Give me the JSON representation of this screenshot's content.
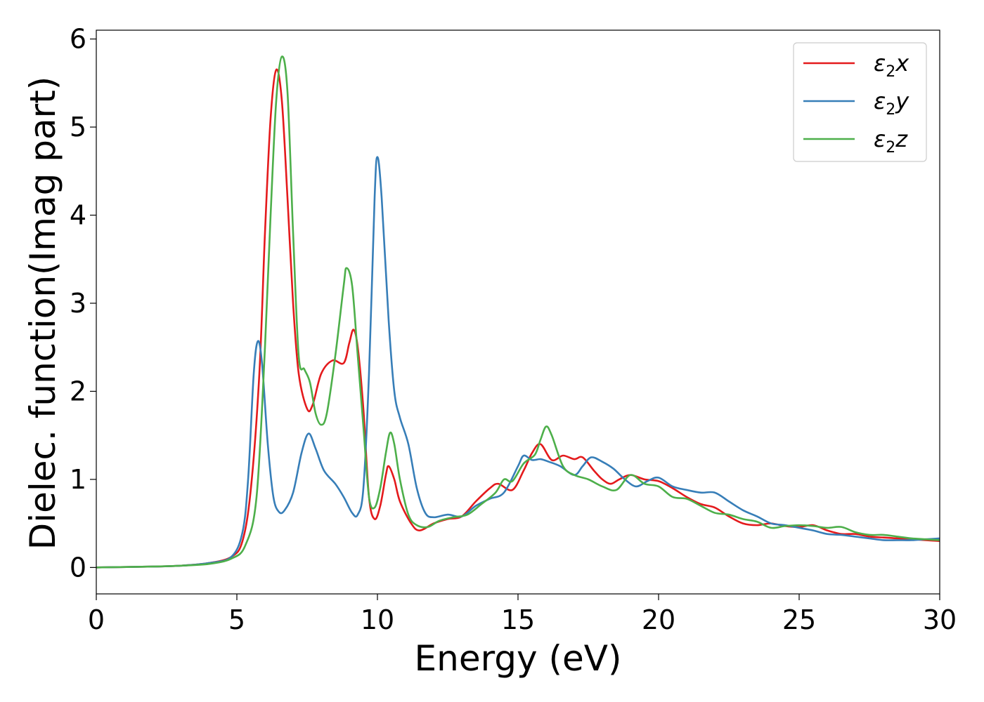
{
  "chart_data": {
    "type": "line",
    "title": "",
    "xlabel": "Energy (eV)",
    "ylabel": "Dielec. function(Imag part)",
    "xlim": [
      0,
      30
    ],
    "ylim": [
      -0.3,
      6.1
    ],
    "xticks": [
      0,
      5,
      10,
      15,
      20,
      25,
      30
    ],
    "yticks": [
      0,
      1,
      2,
      3,
      4,
      5,
      6
    ],
    "grid": false,
    "legend_position": "top-right",
    "series": [
      {
        "name": "ε2x",
        "legend_main": "ε",
        "legend_sub": "2",
        "legend_suffix": "x",
        "color": "#e41a1c",
        "points": [
          [
            0,
            0
          ],
          [
            2,
            0.01
          ],
          [
            3,
            0.02
          ],
          [
            4,
            0.05
          ],
          [
            4.8,
            0.12
          ],
          [
            5.2,
            0.3
          ],
          [
            5.5,
            0.9
          ],
          [
            5.8,
            2.2
          ],
          [
            6.0,
            3.8
          ],
          [
            6.2,
            5.1
          ],
          [
            6.4,
            5.65
          ],
          [
            6.6,
            5.3
          ],
          [
            6.8,
            4.2
          ],
          [
            7.0,
            3.0
          ],
          [
            7.2,
            2.2
          ],
          [
            7.5,
            1.8
          ],
          [
            7.7,
            1.85
          ],
          [
            8.0,
            2.2
          ],
          [
            8.4,
            2.35
          ],
          [
            8.8,
            2.32
          ],
          [
            9.0,
            2.55
          ],
          [
            9.15,
            2.7
          ],
          [
            9.3,
            2.5
          ],
          [
            9.5,
            1.8
          ],
          [
            9.7,
            0.8
          ],
          [
            9.9,
            0.55
          ],
          [
            10.1,
            0.7
          ],
          [
            10.3,
            1.05
          ],
          [
            10.4,
            1.15
          ],
          [
            10.6,
            1.0
          ],
          [
            10.8,
            0.75
          ],
          [
            11.2,
            0.5
          ],
          [
            11.5,
            0.42
          ],
          [
            12.0,
            0.5
          ],
          [
            12.5,
            0.55
          ],
          [
            13.0,
            0.58
          ],
          [
            13.5,
            0.75
          ],
          [
            14.0,
            0.9
          ],
          [
            14.3,
            0.95
          ],
          [
            14.8,
            0.88
          ],
          [
            15.2,
            1.1
          ],
          [
            15.5,
            1.3
          ],
          [
            15.8,
            1.4
          ],
          [
            16.2,
            1.22
          ],
          [
            16.6,
            1.27
          ],
          [
            17.0,
            1.23
          ],
          [
            17.3,
            1.25
          ],
          [
            17.7,
            1.1
          ],
          [
            18.0,
            1.0
          ],
          [
            18.3,
            0.95
          ],
          [
            18.6,
            1.0
          ],
          [
            19.0,
            1.05
          ],
          [
            19.5,
            1.0
          ],
          [
            20.0,
            0.98
          ],
          [
            20.5,
            0.9
          ],
          [
            21.0,
            0.8
          ],
          [
            21.5,
            0.72
          ],
          [
            22.0,
            0.68
          ],
          [
            22.5,
            0.58
          ],
          [
            23.0,
            0.5
          ],
          [
            23.5,
            0.48
          ],
          [
            24.0,
            0.5
          ],
          [
            24.5,
            0.47
          ],
          [
            25.0,
            0.46
          ],
          [
            25.5,
            0.48
          ],
          [
            26.0,
            0.42
          ],
          [
            26.5,
            0.38
          ],
          [
            27.0,
            0.38
          ],
          [
            27.5,
            0.35
          ],
          [
            28.0,
            0.34
          ],
          [
            28.5,
            0.33
          ],
          [
            29.0,
            0.32
          ],
          [
            29.5,
            0.31
          ],
          [
            30.0,
            0.3
          ]
        ]
      },
      {
        "name": "ε2y",
        "legend_main": "ε",
        "legend_sub": "2",
        "legend_suffix": "y",
        "color": "#377eb8",
        "points": [
          [
            0,
            0
          ],
          [
            2,
            0.01
          ],
          [
            3,
            0.02
          ],
          [
            4,
            0.05
          ],
          [
            4.8,
            0.12
          ],
          [
            5.2,
            0.4
          ],
          [
            5.4,
            1.0
          ],
          [
            5.6,
            2.2
          ],
          [
            5.75,
            2.57
          ],
          [
            5.9,
            2.3
          ],
          [
            6.1,
            1.4
          ],
          [
            6.3,
            0.8
          ],
          [
            6.5,
            0.63
          ],
          [
            6.7,
            0.65
          ],
          [
            7.0,
            0.85
          ],
          [
            7.3,
            1.3
          ],
          [
            7.55,
            1.52
          ],
          [
            7.8,
            1.35
          ],
          [
            8.1,
            1.1
          ],
          [
            8.5,
            0.95
          ],
          [
            8.8,
            0.8
          ],
          [
            9.1,
            0.62
          ],
          [
            9.3,
            0.6
          ],
          [
            9.5,
            0.9
          ],
          [
            9.7,
            2.2
          ],
          [
            9.9,
            4.2
          ],
          [
            10.0,
            4.66
          ],
          [
            10.15,
            4.2
          ],
          [
            10.4,
            2.8
          ],
          [
            10.6,
            2.0
          ],
          [
            10.8,
            1.7
          ],
          [
            11.1,
            1.4
          ],
          [
            11.4,
            0.9
          ],
          [
            11.7,
            0.62
          ],
          [
            12.0,
            0.57
          ],
          [
            12.5,
            0.6
          ],
          [
            13.0,
            0.58
          ],
          [
            13.5,
            0.7
          ],
          [
            14.0,
            0.78
          ],
          [
            14.5,
            0.85
          ],
          [
            15.0,
            1.15
          ],
          [
            15.2,
            1.27
          ],
          [
            15.5,
            1.22
          ],
          [
            15.8,
            1.23
          ],
          [
            16.1,
            1.2
          ],
          [
            16.5,
            1.15
          ],
          [
            17.0,
            1.05
          ],
          [
            17.3,
            1.15
          ],
          [
            17.6,
            1.25
          ],
          [
            18.0,
            1.2
          ],
          [
            18.4,
            1.12
          ],
          [
            18.8,
            1.0
          ],
          [
            19.2,
            0.92
          ],
          [
            19.6,
            0.98
          ],
          [
            20.0,
            1.02
          ],
          [
            20.5,
            0.92
          ],
          [
            21.0,
            0.88
          ],
          [
            21.5,
            0.85
          ],
          [
            22.0,
            0.85
          ],
          [
            22.5,
            0.75
          ],
          [
            23.0,
            0.65
          ],
          [
            23.5,
            0.58
          ],
          [
            24.0,
            0.5
          ],
          [
            24.5,
            0.48
          ],
          [
            25.0,
            0.45
          ],
          [
            25.5,
            0.42
          ],
          [
            26.0,
            0.38
          ],
          [
            26.5,
            0.37
          ],
          [
            27.0,
            0.35
          ],
          [
            27.5,
            0.33
          ],
          [
            28.0,
            0.31
          ],
          [
            28.5,
            0.31
          ],
          [
            29.0,
            0.31
          ],
          [
            29.5,
            0.32
          ],
          [
            30.0,
            0.33
          ]
        ]
      },
      {
        "name": "ε2z",
        "legend_main": "ε",
        "legend_sub": "2",
        "legend_suffix": "z",
        "color": "#4daf4a",
        "points": [
          [
            0,
            0
          ],
          [
            2,
            0.01
          ],
          [
            3,
            0.02
          ],
          [
            4,
            0.04
          ],
          [
            4.8,
            0.1
          ],
          [
            5.3,
            0.25
          ],
          [
            5.7,
            0.8
          ],
          [
            6.0,
            2.5
          ],
          [
            6.2,
            4.0
          ],
          [
            6.4,
            5.3
          ],
          [
            6.6,
            5.8
          ],
          [
            6.8,
            5.4
          ],
          [
            7.0,
            3.8
          ],
          [
            7.2,
            2.4
          ],
          [
            7.4,
            2.25
          ],
          [
            7.6,
            2.1
          ],
          [
            7.8,
            1.75
          ],
          [
            8.0,
            1.62
          ],
          [
            8.2,
            1.75
          ],
          [
            8.5,
            2.4
          ],
          [
            8.8,
            3.2
          ],
          [
            8.9,
            3.4
          ],
          [
            9.1,
            3.2
          ],
          [
            9.3,
            2.4
          ],
          [
            9.5,
            1.6
          ],
          [
            9.7,
            0.8
          ],
          [
            9.9,
            0.68
          ],
          [
            10.1,
            0.9
          ],
          [
            10.3,
            1.3
          ],
          [
            10.45,
            1.53
          ],
          [
            10.6,
            1.4
          ],
          [
            10.8,
            1.0
          ],
          [
            11.1,
            0.6
          ],
          [
            11.4,
            0.48
          ],
          [
            11.8,
            0.46
          ],
          [
            12.2,
            0.53
          ],
          [
            12.7,
            0.57
          ],
          [
            13.2,
            0.6
          ],
          [
            13.7,
            0.72
          ],
          [
            14.2,
            0.85
          ],
          [
            14.5,
            1.0
          ],
          [
            14.8,
            0.98
          ],
          [
            15.2,
            1.18
          ],
          [
            15.6,
            1.28
          ],
          [
            15.8,
            1.45
          ],
          [
            16.0,
            1.6
          ],
          [
            16.2,
            1.5
          ],
          [
            16.6,
            1.15
          ],
          [
            17.0,
            1.05
          ],
          [
            17.5,
            1.0
          ],
          [
            18.0,
            0.92
          ],
          [
            18.5,
            0.88
          ],
          [
            19.0,
            1.05
          ],
          [
            19.5,
            0.95
          ],
          [
            20.0,
            0.92
          ],
          [
            20.5,
            0.8
          ],
          [
            21.0,
            0.78
          ],
          [
            21.5,
            0.7
          ],
          [
            22.0,
            0.62
          ],
          [
            22.5,
            0.6
          ],
          [
            23.0,
            0.55
          ],
          [
            23.5,
            0.52
          ],
          [
            24.0,
            0.45
          ],
          [
            24.5,
            0.47
          ],
          [
            25.0,
            0.48
          ],
          [
            25.5,
            0.47
          ],
          [
            26.0,
            0.45
          ],
          [
            26.5,
            0.46
          ],
          [
            27.0,
            0.4
          ],
          [
            27.5,
            0.37
          ],
          [
            28.0,
            0.37
          ],
          [
            28.5,
            0.35
          ],
          [
            29.0,
            0.33
          ],
          [
            29.5,
            0.32
          ],
          [
            30.0,
            0.31
          ]
        ]
      }
    ]
  }
}
